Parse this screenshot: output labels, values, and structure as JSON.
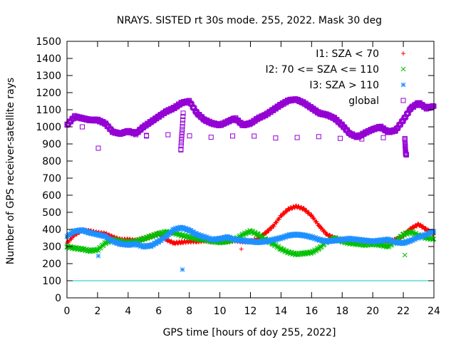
{
  "chart_data": {
    "type": "scatter",
    "title": "NRAYS. SISTED rt 30s mode. 255, 2022. Mask 30 deg",
    "xlabel": "GPS time [hours of doy 255, 2022]",
    "ylabel": "Number of GPS receiver-satellite rays",
    "xlim": [
      0,
      24
    ],
    "ylim": [
      0,
      1500
    ],
    "xticks": [
      0,
      2,
      4,
      6,
      8,
      10,
      12,
      14,
      16,
      18,
      20,
      22,
      24
    ],
    "yticks": [
      0,
      100,
      200,
      300,
      400,
      500,
      600,
      700,
      800,
      900,
      1000,
      1100,
      1200,
      1300,
      1400,
      1500
    ],
    "legend_position": "top-right",
    "reference_line": {
      "y": 100,
      "color": "#00c8c8"
    },
    "series": [
      {
        "name": "I1: SZA < 70",
        "marker": "plus",
        "color": "#ff0000",
        "x": [
          0,
          0.5,
          1,
          1.5,
          2,
          2.5,
          3,
          3.5,
          4,
          4.5,
          5,
          5.5,
          6,
          6.5,
          7,
          7.5,
          8,
          8.5,
          9,
          9.5,
          10,
          10.5,
          11,
          11.5,
          12,
          12.5,
          13,
          13.5,
          14,
          14.5,
          15,
          15.5,
          16,
          16.5,
          17,
          17.5,
          18,
          18.5,
          19,
          19.5,
          20,
          20.5,
          21,
          21.5,
          22,
          22.5,
          23,
          23.5,
          24,
          11.4
        ],
        "y": [
          320,
          370,
          395,
          390,
          380,
          375,
          355,
          340,
          340,
          335,
          345,
          360,
          375,
          340,
          320,
          325,
          330,
          330,
          335,
          330,
          330,
          330,
          335,
          330,
          330,
          345,
          380,
          420,
          480,
          520,
          535,
          520,
          480,
          420,
          370,
          350,
          340,
          335,
          335,
          330,
          325,
          330,
          330,
          340,
          365,
          405,
          430,
          400,
          370,
          285
        ]
      },
      {
        "name": "I2: 70 <= SZA <= 110",
        "marker": "cross",
        "color": "#00c000",
        "x": [
          0,
          0.5,
          1,
          1.5,
          2,
          2.5,
          3,
          3.5,
          4,
          4.5,
          5,
          5.5,
          6,
          6.5,
          7,
          7.5,
          8,
          8.5,
          9,
          9.5,
          10,
          10.5,
          11,
          11.5,
          12,
          12.5,
          13,
          13.5,
          14,
          14.5,
          15,
          15.5,
          16,
          16.5,
          17,
          17.5,
          18,
          18.5,
          19,
          19.5,
          20,
          20.5,
          21,
          21.5,
          22,
          22.5,
          23,
          23.5,
          24,
          22.1
        ],
        "y": [
          300,
          290,
          285,
          275,
          280,
          320,
          340,
          330,
          325,
          330,
          345,
          360,
          375,
          385,
          380,
          365,
          355,
          345,
          340,
          330,
          325,
          330,
          340,
          370,
          390,
          370,
          340,
          315,
          285,
          265,
          255,
          260,
          265,
          290,
          330,
          350,
          330,
          320,
          315,
          310,
          315,
          310,
          300,
          330,
          370,
          385,
          365,
          350,
          345,
          250
        ]
      },
      {
        "name": "I3: SZA > 110",
        "marker": "star",
        "color": "#1e90ff",
        "x": [
          0,
          0.5,
          1,
          1.5,
          2,
          2.5,
          3,
          3.5,
          4,
          4.5,
          5,
          5.5,
          6,
          6.5,
          7,
          7.5,
          8,
          8.5,
          9,
          9.5,
          10,
          10.5,
          11,
          11.5,
          12,
          12.5,
          13,
          13.5,
          14,
          14.5,
          15,
          15.5,
          16,
          16.5,
          17,
          17.5,
          18,
          18.5,
          19,
          19.5,
          20,
          20.5,
          21,
          21.5,
          22,
          22.5,
          23,
          23.5,
          24,
          2.05,
          7.55
        ],
        "y": [
          360,
          390,
          395,
          380,
          370,
          360,
          330,
          315,
          310,
          315,
          300,
          305,
          330,
          360,
          400,
          410,
          395,
          370,
          355,
          340,
          345,
          355,
          340,
          335,
          330,
          325,
          330,
          340,
          350,
          365,
          370,
          365,
          355,
          340,
          330,
          335,
          340,
          345,
          340,
          335,
          330,
          335,
          340,
          325,
          320,
          335,
          355,
          370,
          390,
          245,
          165
        ]
      },
      {
        "name": "global",
        "marker": "square",
        "color": "#9400d3",
        "x": [
          0,
          0.5,
          1,
          1.5,
          2,
          2.5,
          3,
          3.5,
          4,
          4.5,
          5,
          5.5,
          6,
          6.5,
          7,
          7.5,
          8,
          8.5,
          9,
          9.5,
          10,
          10.5,
          11,
          11.5,
          12,
          12.5,
          13,
          13.5,
          14,
          14.5,
          15,
          15.5,
          16,
          16.5,
          17,
          17.5,
          18,
          18.5,
          19,
          19.5,
          20,
          20.5,
          21,
          21.5,
          22,
          22.5,
          23,
          23.5,
          24,
          2.05,
          7.45,
          7.6,
          1.0,
          5.2,
          22.1,
          22.15,
          22.2
        ],
        "y": [
          1010,
          1060,
          1050,
          1040,
          1040,
          1020,
          970,
          960,
          975,
          960,
          1000,
          1030,
          1060,
          1090,
          1110,
          1140,
          1150,
          1080,
          1040,
          1020,
          1010,
          1030,
          1050,
          1010,
          1020,
          1050,
          1070,
          1100,
          1130,
          1155,
          1160,
          1140,
          1110,
          1080,
          1070,
          1050,
          1010,
          960,
          940,
          965,
          985,
          1000,
          970,
          980,
          1040,
          1110,
          1140,
          1110,
          1120,
          875,
          865,
          1080,
          1000,
          950,
          930,
          850,
          835
        ]
      }
    ]
  }
}
